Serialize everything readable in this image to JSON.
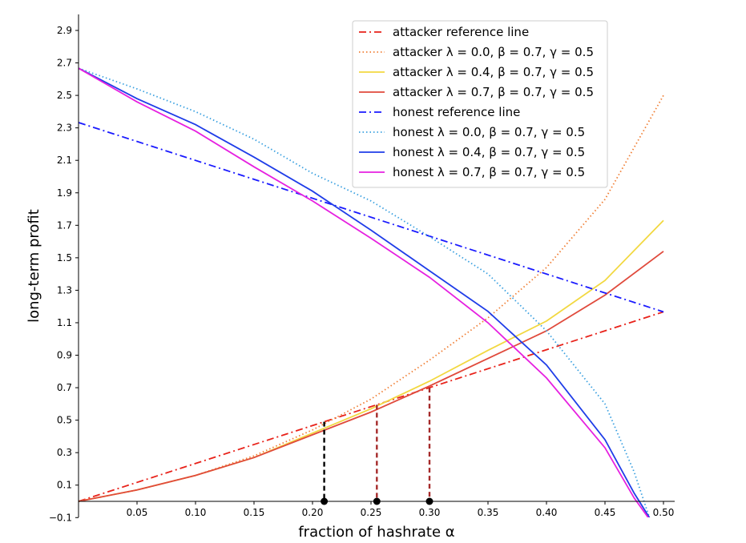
{
  "chart_data": {
    "type": "line",
    "xlabel": "fraction of hashrate α",
    "ylabel": "long-term profit",
    "xlim": [
      0.0,
      0.51
    ],
    "ylim": [
      -0.1,
      3.0
    ],
    "xticks": [
      0.05,
      0.1,
      0.15,
      0.2,
      0.25,
      0.3,
      0.35,
      0.4,
      0.45,
      0.5
    ],
    "xtick_labels": [
      "0.05",
      "0.10",
      "0.15",
      "0.20",
      "0.25",
      "0.30",
      "0.35",
      "0.40",
      "0.45",
      "0.50"
    ],
    "yticks": [
      -0.1,
      0.1,
      0.3,
      0.5,
      0.7,
      0.9,
      1.1,
      1.3,
      1.5,
      1.7,
      1.9,
      2.1,
      2.3,
      2.5,
      2.7,
      2.9
    ],
    "ytick_labels": [
      "−0.1",
      "0.1",
      "0.3",
      "0.5",
      "0.7",
      "0.9",
      "1.1",
      "1.3",
      "1.5",
      "1.7",
      "1.9",
      "2.1",
      "2.3",
      "2.5",
      "2.7",
      "2.9"
    ],
    "grid": false,
    "legend_position": "top-right",
    "series": [
      {
        "name": "attacker reference line",
        "color": "#e8221a",
        "dash": "dashdot",
        "x": [
          0.0,
          0.5
        ],
        "y": [
          0.0,
          1.167
        ]
      },
      {
        "name": "attacker λ = 0.0, β = 0.7, γ = 0.5",
        "color": "#f07f35",
        "dash": "dotted",
        "x": [
          0.0,
          0.05,
          0.1,
          0.15,
          0.2,
          0.25,
          0.3,
          0.35,
          0.4,
          0.45,
          0.5
        ],
        "y": [
          0.0,
          0.07,
          0.16,
          0.28,
          0.44,
          0.63,
          0.87,
          1.13,
          1.44,
          1.86,
          2.5
        ]
      },
      {
        "name": "attacker λ = 0.4, β = 0.7, γ = 0.5",
        "color": "#f2d840",
        "dash": "solid",
        "x": [
          0.0,
          0.05,
          0.1,
          0.15,
          0.2,
          0.25,
          0.3,
          0.35,
          0.4,
          0.45,
          0.5
        ],
        "y": [
          0.0,
          0.07,
          0.16,
          0.27,
          0.42,
          0.57,
          0.74,
          0.93,
          1.11,
          1.36,
          1.73
        ]
      },
      {
        "name": "attacker λ = 0.7, β = 0.7, γ = 0.5",
        "color": "#e04a3c",
        "dash": "solid",
        "x": [
          0.0,
          0.05,
          0.1,
          0.15,
          0.2,
          0.25,
          0.3,
          0.35,
          0.4,
          0.45,
          0.5
        ],
        "y": [
          0.0,
          0.07,
          0.16,
          0.27,
          0.41,
          0.55,
          0.71,
          0.88,
          1.05,
          1.27,
          1.54
        ]
      },
      {
        "name": "honest reference line",
        "color": "#1a1aff",
        "dash": "dashdot",
        "x": [
          0.0,
          0.5
        ],
        "y": [
          2.333,
          1.167
        ]
      },
      {
        "name": "honest λ = 0.0, β = 0.7, γ = 0.5",
        "color": "#3aa0e0",
        "dash": "dotted",
        "x": [
          0.0,
          0.05,
          0.1,
          0.15,
          0.2,
          0.25,
          0.3,
          0.35,
          0.4,
          0.45,
          0.475,
          0.488
        ],
        "y": [
          2.667,
          2.54,
          2.4,
          2.23,
          2.02,
          1.85,
          1.63,
          1.4,
          1.05,
          0.6,
          0.18,
          -0.1
        ]
      },
      {
        "name": "honest λ = 0.4, β = 0.7, γ = 0.5",
        "color": "#1f3de8",
        "dash": "solid",
        "x": [
          0.0,
          0.05,
          0.1,
          0.15,
          0.2,
          0.25,
          0.3,
          0.35,
          0.4,
          0.45,
          0.475,
          0.488
        ],
        "y": [
          2.667,
          2.48,
          2.32,
          2.12,
          1.91,
          1.67,
          1.42,
          1.17,
          0.84,
          0.38,
          0.05,
          -0.1
        ]
      },
      {
        "name": "honest λ = 0.7, β = 0.7, γ = 0.5",
        "color": "#e620e0",
        "dash": "solid",
        "x": [
          0.0,
          0.05,
          0.1,
          0.15,
          0.2,
          0.25,
          0.3,
          0.35,
          0.4,
          0.45,
          0.475,
          0.487
        ],
        "y": [
          2.667,
          2.46,
          2.28,
          2.06,
          1.85,
          1.62,
          1.38,
          1.1,
          0.76,
          0.33,
          0.02,
          -0.1
        ]
      }
    ],
    "markers": [
      {
        "x": 0.21,
        "y": 0.49,
        "color": "#000000"
      },
      {
        "x": 0.255,
        "y": 0.595,
        "color": "#a52a2a"
      },
      {
        "x": 0.3,
        "y": 0.7,
        "color": "#a52a2a"
      }
    ]
  }
}
